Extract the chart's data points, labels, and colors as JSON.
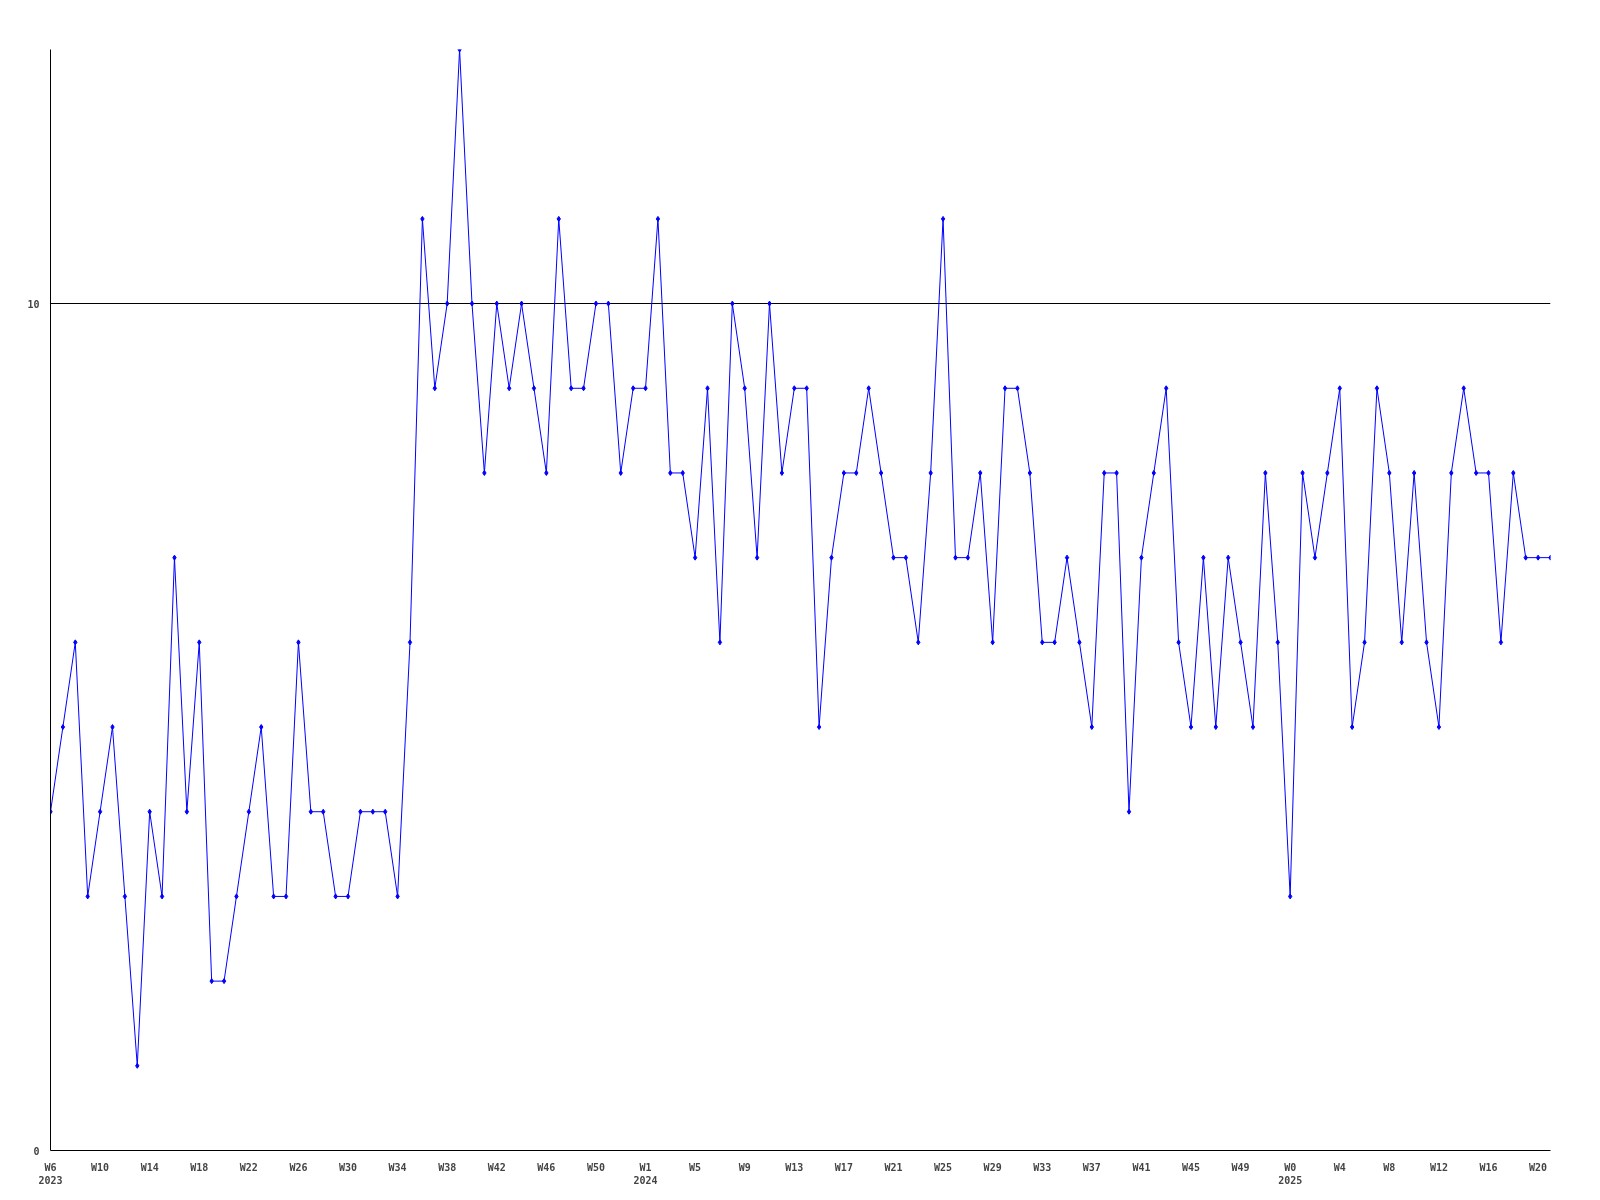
{
  "chart_data": {
    "type": "line",
    "categories": [
      "W6\n2023",
      null,
      null,
      null,
      "W10",
      null,
      null,
      null,
      "W14",
      null,
      null,
      null,
      "W18",
      null,
      null,
      null,
      "W22",
      null,
      null,
      null,
      "W26",
      null,
      null,
      null,
      "W30",
      null,
      null,
      null,
      "W34",
      null,
      null,
      null,
      "W38",
      null,
      null,
      null,
      "W42",
      null,
      null,
      null,
      "W46",
      null,
      null,
      null,
      "W50",
      null,
      null,
      null,
      "W1\n2024",
      null,
      null,
      null,
      "W5",
      null,
      null,
      null,
      "W9",
      null,
      null,
      null,
      "W13",
      null,
      null,
      null,
      "W17",
      null,
      null,
      null,
      "W21",
      null,
      null,
      null,
      "W25",
      null,
      null,
      null,
      "W29",
      null,
      null,
      null,
      "W33",
      null,
      null,
      null,
      "W37",
      null,
      null,
      null,
      "W41",
      null,
      null,
      null,
      "W45",
      null,
      null,
      null,
      "W49",
      null,
      null,
      null,
      "W0\n2025",
      null,
      null,
      null,
      "W4",
      null,
      null,
      null,
      "W8",
      null,
      null,
      null,
      "W12",
      null,
      null,
      null,
      "W16",
      null,
      null,
      null,
      "W20",
      null
    ],
    "series": [
      {
        "color": "#0000ff",
        "values": [
          4,
          5,
          6,
          3,
          4,
          5,
          3,
          1,
          4,
          3,
          7,
          4,
          6,
          2,
          2,
          3,
          4,
          5,
          3,
          3,
          6,
          4,
          4,
          3,
          3,
          4,
          4,
          4,
          3,
          6,
          11,
          9,
          10,
          13,
          10,
          8,
          10,
          9,
          10,
          9,
          8,
          11,
          9,
          9,
          10,
          10,
          8,
          9,
          9,
          11,
          8,
          8,
          7,
          9,
          6,
          10,
          9,
          7,
          10,
          8,
          9,
          9,
          5,
          7,
          8,
          8,
          9,
          8,
          7,
          7,
          6,
          8,
          11,
          7,
          7,
          8,
          6,
          9,
          9,
          8,
          6,
          6,
          7,
          6,
          5,
          8,
          8,
          4,
          7,
          8,
          9,
          6,
          5,
          7,
          5,
          7,
          6,
          5,
          8,
          6,
          3,
          8,
          7,
          8,
          9,
          5,
          6,
          9,
          8,
          6,
          8,
          6,
          5,
          8,
          9,
          8,
          8,
          6,
          8,
          7,
          7,
          7
        ]
      }
    ],
    "ylim": [
      0,
      13
    ],
    "yticks": [
      0,
      10
    ],
    "grid": "y",
    "marker": "diamond",
    "line_style": "solid"
  }
}
